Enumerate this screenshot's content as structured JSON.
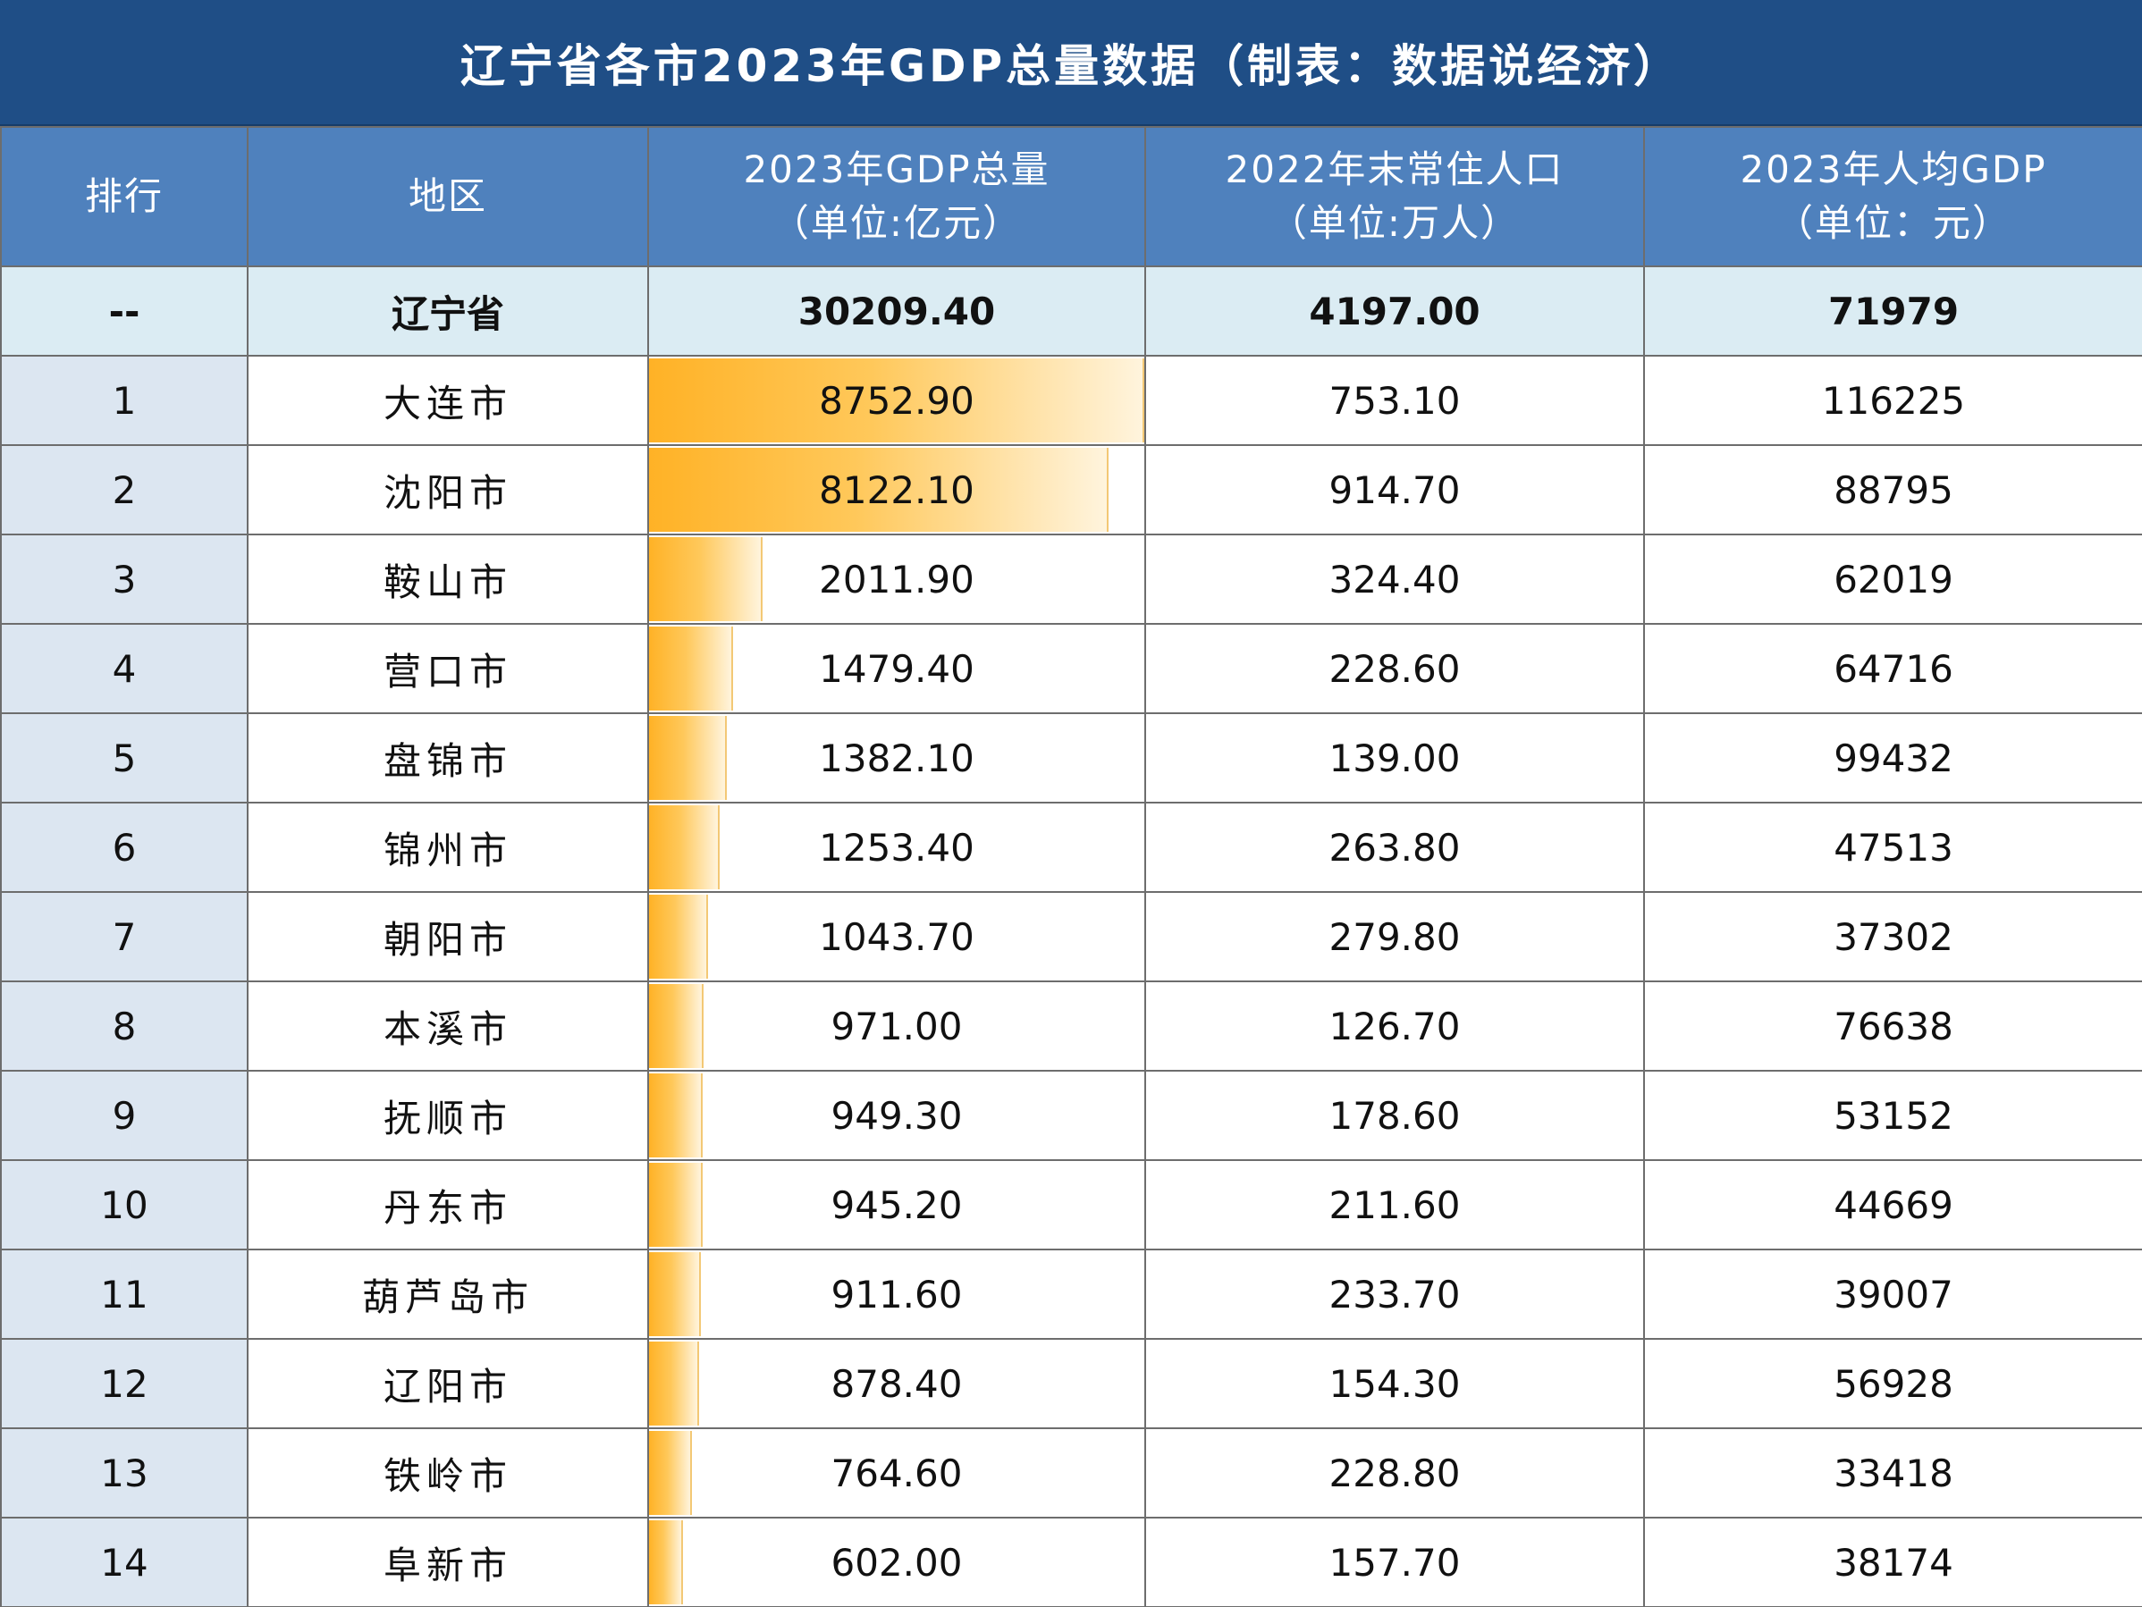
{
  "title": "辽宁省各市2023年GDP总量数据（制表：数据说经济）",
  "headers": {
    "rank": "排行",
    "region": "地区",
    "gdp": [
      "2023年GDP总量",
      "（单位:亿元）"
    ],
    "population": [
      "2022年末常住人口",
      "（单位:万人）"
    ],
    "per_capita": [
      "2023年人均GDP",
      "（单位：元）"
    ]
  },
  "province": {
    "rank": "--",
    "region": "辽宁省",
    "gdp": "30209.40",
    "population": "4197.00",
    "per_capita": "71979"
  },
  "rows": [
    {
      "rank": "1",
      "region": "大连市",
      "gdp": "8752.90",
      "population": "753.10",
      "per_capita": "116225"
    },
    {
      "rank": "2",
      "region": "沈阳市",
      "gdp": "8122.10",
      "population": "914.70",
      "per_capita": "88795"
    },
    {
      "rank": "3",
      "region": "鞍山市",
      "gdp": "2011.90",
      "population": "324.40",
      "per_capita": "62019"
    },
    {
      "rank": "4",
      "region": "营口市",
      "gdp": "1479.40",
      "population": "228.60",
      "per_capita": "64716"
    },
    {
      "rank": "5",
      "region": "盘锦市",
      "gdp": "1382.10",
      "population": "139.00",
      "per_capita": "99432"
    },
    {
      "rank": "6",
      "region": "锦州市",
      "gdp": "1253.40",
      "population": "263.80",
      "per_capita": "47513"
    },
    {
      "rank": "7",
      "region": "朝阳市",
      "gdp": "1043.70",
      "population": "279.80",
      "per_capita": "37302"
    },
    {
      "rank": "8",
      "region": "本溪市",
      "gdp": "971.00",
      "population": "126.70",
      "per_capita": "76638"
    },
    {
      "rank": "9",
      "region": "抚顺市",
      "gdp": "949.30",
      "population": "178.60",
      "per_capita": "53152"
    },
    {
      "rank": "10",
      "region": "丹东市",
      "gdp": "945.20",
      "population": "211.60",
      "per_capita": "44669"
    },
    {
      "rank": "11",
      "region": "葫芦岛市",
      "gdp": "911.60",
      "population": "233.70",
      "per_capita": "39007"
    },
    {
      "rank": "12",
      "region": "辽阳市",
      "gdp": "878.40",
      "population": "154.30",
      "per_capita": "56928"
    },
    {
      "rank": "13",
      "region": "铁岭市",
      "gdp": "764.60",
      "population": "228.80",
      "per_capita": "33418"
    },
    {
      "rank": "14",
      "region": "阜新市",
      "gdp": "602.00",
      "population": "157.70",
      "per_capita": "38174"
    }
  ],
  "colors": {
    "title_bg": "#1f4e86",
    "header_bg": "#4f81bd",
    "province_row_bg": "#dbecf3",
    "rank_col_bg": "#dce6f1",
    "data_bar": "#ffb226"
  }
}
